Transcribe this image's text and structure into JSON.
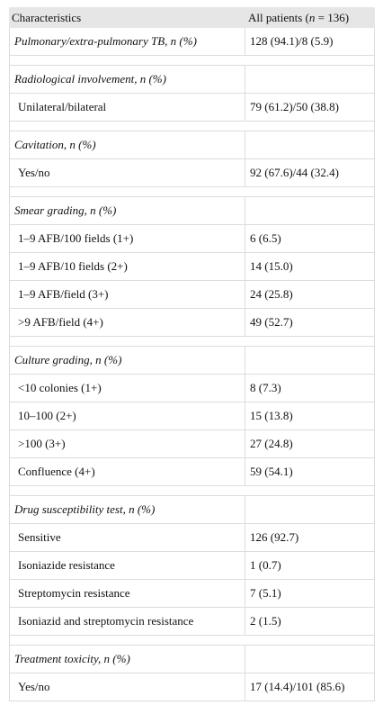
{
  "header": {
    "col1": "Characteristics",
    "col2": {
      "before": "All patients (",
      "italic": "n",
      "after": " = 136)"
    }
  },
  "groups": [
    {
      "title": "Pulmonary/extra-pulmonary TB, n (%)",
      "value": "128 (94.1)/8 (5.9)",
      "rows": []
    },
    {
      "title": "Radiological involvement, n (%)",
      "rows": [
        [
          "Unilateral/bilateral",
          "79 (61.2)/50 (38.8)"
        ]
      ]
    },
    {
      "title": "Cavitation, n (%)",
      "rows": [
        [
          "Yes/no",
          "92 (67.6)/44 (32.4)"
        ]
      ]
    },
    {
      "title": "Smear grading, n (%)",
      "rows": [
        [
          "1–9 AFB/100 fields (1+)",
          "6 (6.5)"
        ],
        [
          "1–9 AFB/10 fields (2+)",
          "14 (15.0)"
        ],
        [
          "1–9 AFB/field (3+)",
          "24 (25.8)"
        ],
        [
          ">9 AFB/field (4+)",
          "49 (52.7)"
        ]
      ]
    },
    {
      "title": "Culture grading, n (%)",
      "rows": [
        [
          "<10 colonies (1+)",
          "8 (7.3)"
        ],
        [
          "10–100 (2+)",
          "15 (13.8)"
        ],
        [
          ">100 (3+)",
          "27 (24.8)"
        ],
        [
          "Confluence (4+)",
          "59 (54.1)"
        ]
      ]
    },
    {
      "title": "Drug susceptibility test, n (%)",
      "rows": [
        [
          "Sensitive",
          "126 (92.7)"
        ],
        [
          "Isoniazide resistance",
          "1 (0.7)"
        ],
        [
          "Streptomycin resistance",
          "7 (5.1)"
        ],
        [
          "Isoniazid and streptomycin resistance",
          "2 (1.5)"
        ]
      ]
    },
    {
      "title": "Treatment toxicity, n (%)",
      "rows": [
        [
          "Yes/no",
          "17 (14.4)/101 (85.6)"
        ]
      ]
    }
  ]
}
